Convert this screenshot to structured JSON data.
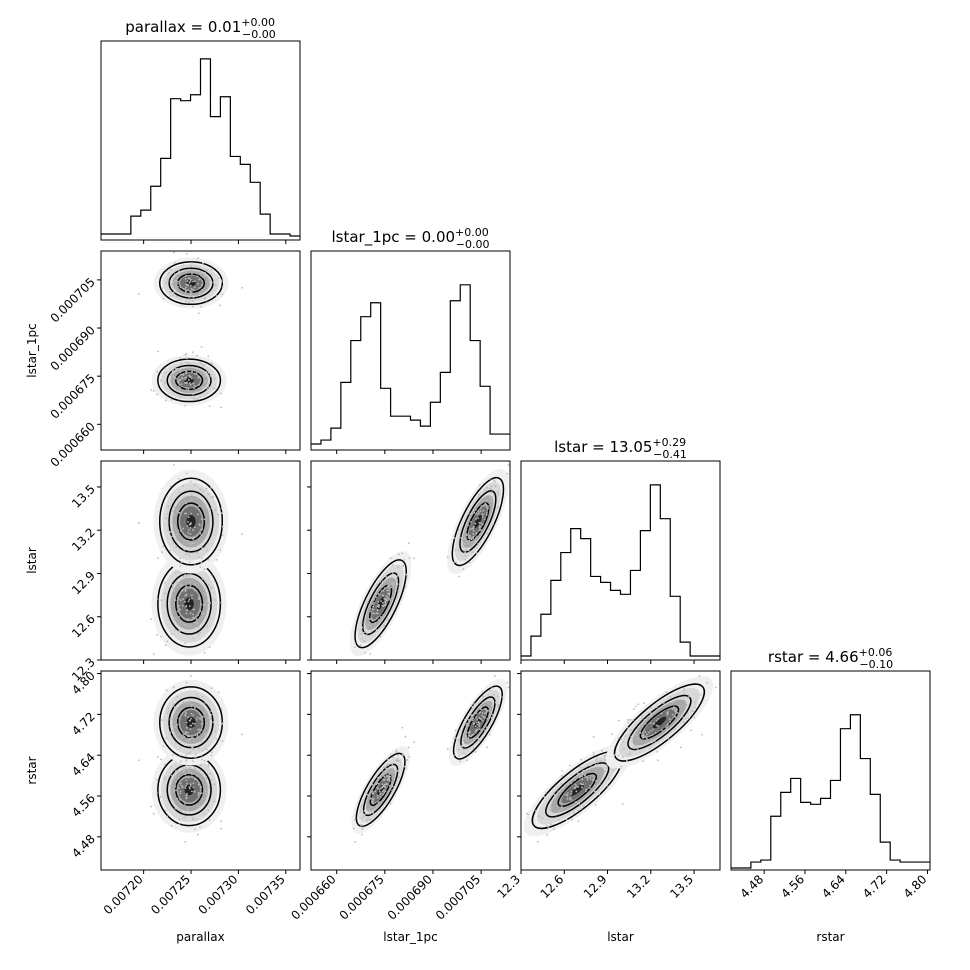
{
  "chart_data": {
    "type": "corner",
    "params": [
      "parallax",
      "lstar_1pc",
      "lstar",
      "rstar"
    ],
    "titles": [
      {
        "base": "parallax = 0.01",
        "sup": "+0.00",
        "sub": "−0.00"
      },
      {
        "base": "lstar_1pc = 0.00",
        "sup": "+0.00",
        "sub": "−0.00"
      },
      {
        "base": "lstar = 13.05",
        "sup": "+0.29",
        "sub": "−0.41"
      },
      {
        "base": "rstar = 4.66",
        "sup": "+0.06",
        "sub": "−0.10"
      }
    ],
    "xlabels": [
      "parallax",
      "lstar_1pc",
      "lstar",
      "rstar"
    ],
    "ylabels": [
      "",
      "lstar_1pc",
      "lstar",
      "rstar"
    ],
    "ranges": [
      [
        0.007155,
        0.007365
      ],
      [
        0.000652,
        0.000714
      ],
      [
        12.3,
        13.68
      ],
      [
        4.415,
        4.805
      ]
    ],
    "ticks": [
      {
        "values": [
          0.0072,
          0.00725,
          0.0073,
          0.00735
        ],
        "labels": [
          "0.00720",
          "0.00725",
          "0.00730",
          "0.00735"
        ]
      },
      {
        "values": [
          0.00066,
          0.000675,
          0.00069,
          0.000705
        ],
        "labels": [
          "0.000660",
          "0.000675",
          "0.000690",
          "0.000705"
        ]
      },
      {
        "values": [
          12.3,
          12.6,
          12.9,
          13.2,
          13.5
        ],
        "labels": [
          "12.3",
          "12.6",
          "12.9",
          "13.2",
          "13.5"
        ]
      },
      {
        "values": [
          4.48,
          4.56,
          4.64,
          4.72,
          4.8
        ],
        "labels": [
          "4.48",
          "4.56",
          "4.64",
          "4.72",
          "4.80"
        ]
      }
    ],
    "histograms": [
      [
        0.03,
        0.03,
        0.03,
        0.12,
        0.15,
        0.27,
        0.41,
        0.71,
        0.7,
        0.73,
        0.91,
        0.62,
        0.72,
        0.42,
        0.38,
        0.29,
        0.13,
        0.03,
        0.03,
        0.02
      ],
      [
        0.03,
        0.05,
        0.11,
        0.34,
        0.55,
        0.67,
        0.74,
        0.31,
        0.17,
        0.17,
        0.15,
        0.12,
        0.24,
        0.39,
        0.75,
        0.83,
        0.55,
        0.32,
        0.08,
        0.08
      ],
      [
        0.02,
        0.12,
        0.23,
        0.4,
        0.54,
        0.66,
        0.61,
        0.42,
        0.39,
        0.35,
        0.33,
        0.45,
        0.65,
        0.88,
        0.71,
        0.32,
        0.09,
        0.02,
        0.02,
        0.02
      ],
      [
        0.01,
        0.01,
        0.04,
        0.05,
        0.27,
        0.39,
        0.46,
        0.34,
        0.33,
        0.36,
        0.45,
        0.71,
        0.78,
        0.56,
        0.38,
        0.14,
        0.05,
        0.04,
        0.04,
        0.04
      ]
    ],
    "modes": [
      [
        0.007248,
        0.0006737,
        12.69,
        4.572
      ],
      [
        0.00725,
        0.000704,
        13.26,
        4.704
      ]
    ],
    "mode_weights": [
      0.52,
      0.48
    ],
    "mode_sigmas": [
      1.65e-05,
      3.3e-06,
      0.15,
      0.035
    ],
    "grid": false,
    "legend": "none"
  }
}
